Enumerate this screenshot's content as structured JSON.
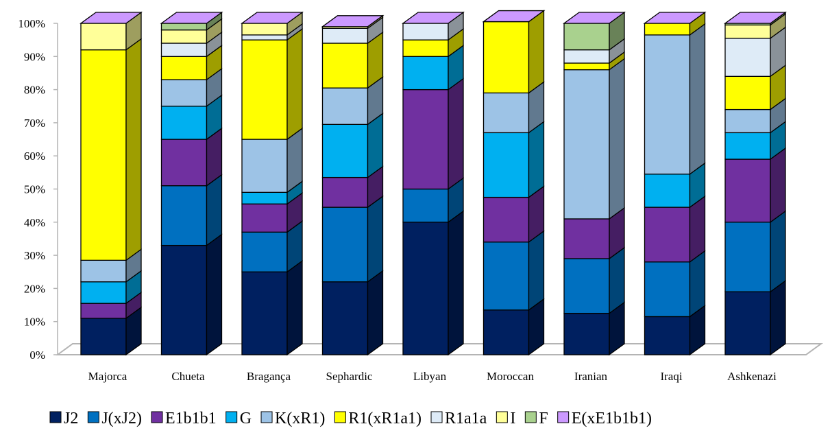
{
  "chart_data": {
    "type": "bar",
    "stacked": true,
    "percent": true,
    "three_d": true,
    "categories": [
      "Majorca",
      "Chueta",
      "Bragança",
      "Sephardic",
      "Libyan",
      "Moroccan",
      "Iranian",
      "Iraqi",
      "Ashkenazi"
    ],
    "ylim": [
      0,
      100
    ],
    "yticks": [
      "0%",
      "10%",
      "20%",
      "30%",
      "40%",
      "50%",
      "60%",
      "70%",
      "80%",
      "90%",
      "100%"
    ],
    "grid": false,
    "legend_position": "bottom",
    "series": [
      {
        "name": "J2",
        "color": "#002060",
        "values": [
          11,
          33,
          25,
          22,
          40,
          13.5,
          12.5,
          11.5,
          19
        ]
      },
      {
        "name": "J(xJ2)",
        "color": "#0070C0",
        "values": [
          0,
          18,
          12,
          22.5,
          10,
          20.5,
          16.5,
          16.5,
          21
        ]
      },
      {
        "name": "E1b1b1",
        "color": "#7030A0",
        "values": [
          4.5,
          14,
          8.5,
          9,
          30,
          13.5,
          12,
          16.5,
          19
        ]
      },
      {
        "name": "G",
        "color": "#00B0F0",
        "values": [
          6.5,
          10,
          3.5,
          16,
          10,
          19.5,
          0,
          10,
          8
        ]
      },
      {
        "name": "K(xR1)",
        "color": "#9DC3E6",
        "values": [
          6.5,
          8,
          16,
          11,
          0,
          12,
          45,
          42,
          7
        ]
      },
      {
        "name": "R1(xR1a1)",
        "color": "#FFFF00",
        "values": [
          63.5,
          7,
          30,
          13.5,
          5,
          21.5,
          2,
          3.5,
          10
        ]
      },
      {
        "name": "R1a1a",
        "color": "#DEEBF7",
        "values": [
          0,
          4,
          1.5,
          4.5,
          5,
          0,
          4,
          0,
          11.5
        ]
      },
      {
        "name": "I",
        "color": "#FFFF99",
        "values": [
          8,
          4,
          3.5,
          0.5,
          0,
          0,
          0,
          0,
          4
        ]
      },
      {
        "name": "F",
        "color": "#A9D18E",
        "values": [
          0,
          2,
          0,
          0,
          0,
          0,
          8,
          0,
          0.5
        ]
      },
      {
        "name": "E(xE1b1b1)",
        "color": "#CC99FF",
        "values": [
          0,
          0,
          0,
          0,
          0,
          0,
          0,
          0,
          0
        ]
      }
    ]
  }
}
